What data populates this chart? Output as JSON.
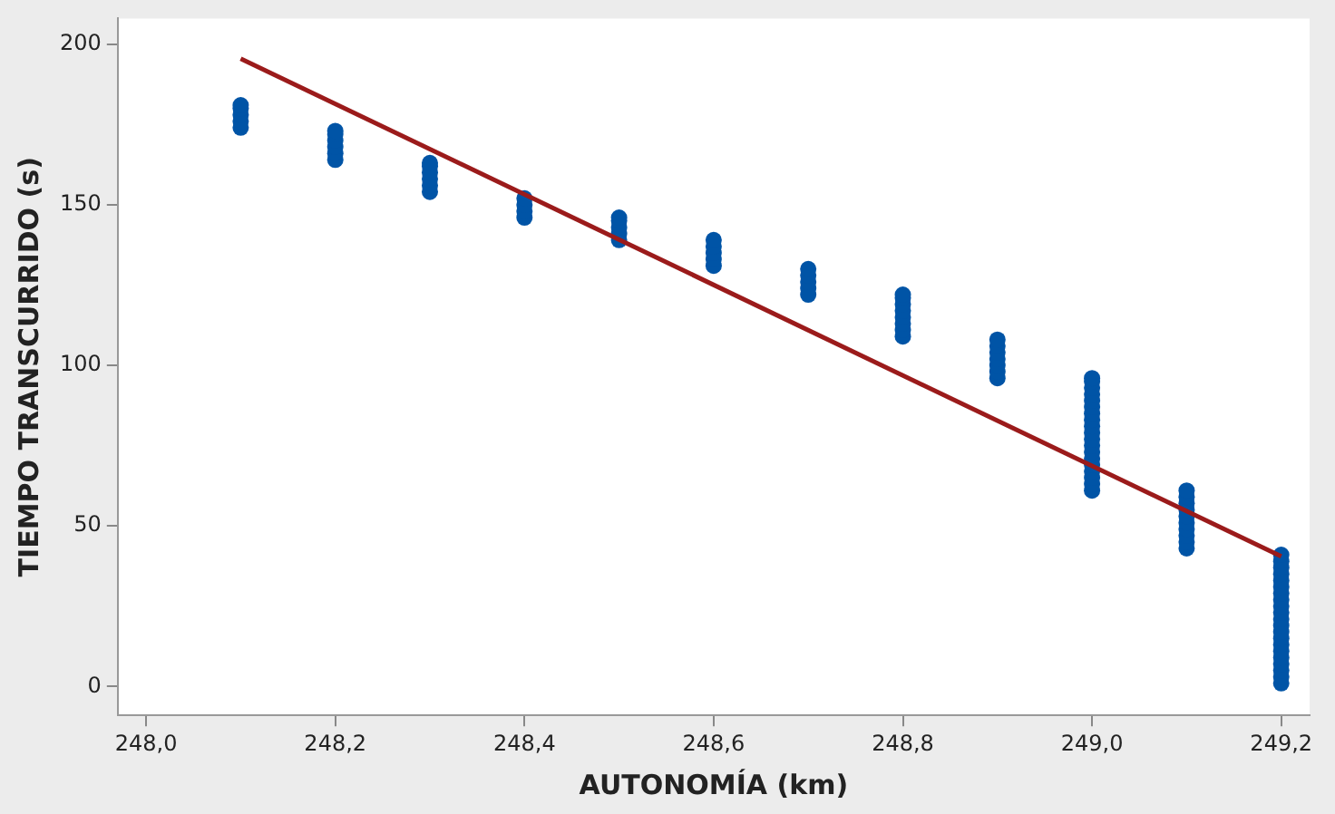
{
  "chart_data": {
    "type": "scatter",
    "xlabel": "AUTONOMÍA (km)",
    "ylabel": "TIEMPO TRANSCURRIDO (s)",
    "xlim": [
      247.97,
      249.23
    ],
    "ylim": [
      -9,
      208
    ],
    "xticks": [
      {
        "value": 248.0,
        "label": "248,0"
      },
      {
        "value": 248.2,
        "label": "248,2"
      },
      {
        "value": 248.4,
        "label": "248,4"
      },
      {
        "value": 248.6,
        "label": "248,6"
      },
      {
        "value": 248.8,
        "label": "248,8"
      },
      {
        "value": 249.0,
        "label": "249,0"
      },
      {
        "value": 249.2,
        "label": "249,2"
      }
    ],
    "yticks": [
      0,
      50,
      100,
      150,
      200
    ],
    "grid": false,
    "legend": false,
    "series": [
      {
        "color": "#0054a6",
        "marker": "circle",
        "x": [
          248.1,
          248.1,
          248.1,
          248.1,
          248.1,
          248.2,
          248.2,
          248.2,
          248.2,
          248.2,
          248.2,
          248.3,
          248.3,
          248.3,
          248.3,
          248.3,
          248.3,
          248.4,
          248.4,
          248.4,
          248.4,
          248.5,
          248.5,
          248.5,
          248.5,
          248.5,
          248.6,
          248.6,
          248.6,
          248.6,
          248.6,
          248.7,
          248.7,
          248.7,
          248.7,
          248.7,
          248.8,
          248.8,
          248.8,
          248.8,
          248.8,
          248.8,
          248.8,
          248.8,
          248.9,
          248.9,
          248.9,
          248.9,
          248.9,
          248.9,
          248.9,
          249.0,
          249.0,
          249.0,
          249.0,
          249.0,
          249.0,
          249.0,
          249.0,
          249.0,
          249.0,
          249.0,
          249.0,
          249.0,
          249.0,
          249.0,
          249.0,
          249.0,
          249.0,
          249.0,
          249.1,
          249.1,
          249.1,
          249.1,
          249.1,
          249.1,
          249.1,
          249.1,
          249.1,
          249.1,
          249.2,
          249.2,
          249.2,
          249.2,
          249.2,
          249.2,
          249.2,
          249.2,
          249.2,
          249.2,
          249.2,
          249.2,
          249.2,
          249.2,
          249.2,
          249.2,
          249.2,
          249.2,
          249.2,
          249.2,
          249.2
        ],
        "values": [
          174,
          176,
          178,
          180,
          181,
          164,
          166,
          168,
          170,
          172,
          173,
          154,
          156,
          158,
          160,
          162,
          163,
          146,
          148,
          150,
          152,
          139,
          141,
          143,
          145,
          146,
          131,
          133,
          135,
          137,
          139,
          122,
          124,
          126,
          128,
          130,
          109,
          111,
          113,
          115,
          117,
          119,
          121,
          122,
          96,
          98,
          100,
          102,
          104,
          106,
          108,
          61,
          63,
          65,
          67,
          69,
          71,
          73,
          75,
          77,
          79,
          81,
          83,
          85,
          87,
          89,
          91,
          93,
          95,
          96,
          43,
          45,
          47,
          49,
          51,
          53,
          55,
          57,
          59,
          61,
          1,
          3,
          5,
          7,
          9,
          11,
          13,
          15,
          17,
          19,
          21,
          23,
          25,
          27,
          29,
          31,
          33,
          35,
          37,
          39,
          41
        ]
      },
      {
        "type": "line",
        "color": "#9b1b1b",
        "x": [
          248.1,
          249.2
        ],
        "values": [
          195.5,
          40.5
        ]
      }
    ]
  }
}
